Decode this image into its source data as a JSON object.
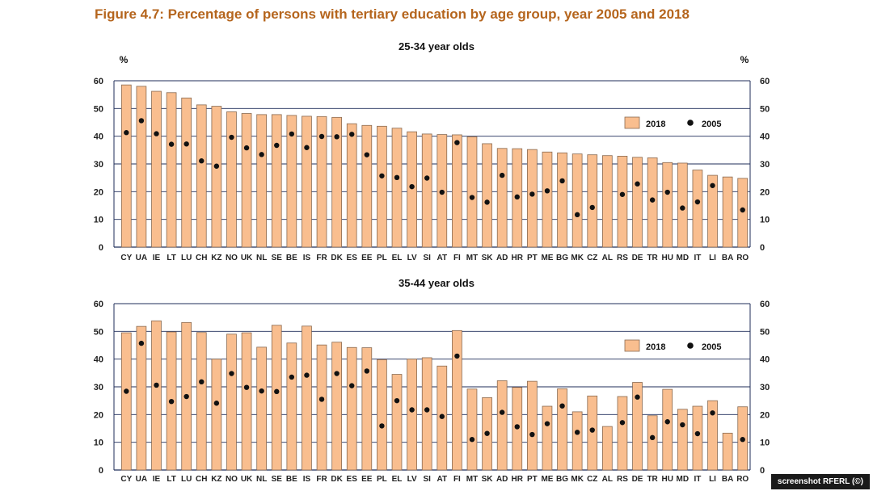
{
  "figure_title": "Figure 4.7: Percentage of persons with tertiary education by age group, year 2005 and 2018",
  "credit": "screenshot RFERL (©)",
  "colors": {
    "bar_fill": "#f9be8f",
    "bar_stroke": "#8a6a50",
    "dot": "#111111",
    "axis": "#1f2d5a",
    "title": "#b5651d"
  },
  "chart_data": [
    {
      "type": "bar",
      "title": "25-34 year olds",
      "ylabel_left": "%",
      "ylabel_right": "%",
      "ylim": [
        0,
        60
      ],
      "yticks": [
        "0",
        "10",
        "20",
        "30",
        "40",
        "50",
        "60"
      ],
      "legend": {
        "position": "top-right",
        "bar_label": "2018",
        "dot_label": "2005"
      },
      "categories": [
        "CY",
        "UA",
        "IE",
        "LT",
        "LU",
        "CH",
        "KZ",
        "NO",
        "UK",
        "NL",
        "SE",
        "BE",
        "IS",
        "FR",
        "DK",
        "ES",
        "EE",
        "PL",
        "EL",
        "LV",
        "SI",
        "AT",
        "FI",
        "MT",
        "SK",
        "AD",
        "HR",
        "PT",
        "ME",
        "BG",
        "MK",
        "CZ",
        "AL",
        "RS",
        "DE",
        "TR",
        "HU",
        "MD",
        "IT",
        "LI",
        "BA",
        "RO"
      ],
      "series": [
        {
          "name": "2018",
          "type": "bar",
          "values": [
            58.5,
            58,
            56.2,
            55.7,
            53.8,
            51.3,
            50.8,
            48.8,
            48.2,
            47.8,
            47.8,
            47.5,
            47.2,
            47.1,
            46.8,
            44.5,
            43.9,
            43.6,
            42.9,
            41.6,
            40.8,
            40.6,
            40.5,
            39.8,
            37.3,
            35.6,
            35.5,
            35.2,
            34.3,
            34,
            33.6,
            33.3,
            33,
            32.8,
            32.4,
            32.2,
            30.5,
            30.3,
            27.8,
            25.9,
            25.3,
            24.8
          ]
        },
        {
          "name": "2005",
          "type": "dot",
          "values": [
            41.3,
            45.6,
            40.9,
            37.1,
            37.2,
            31.1,
            29.2,
            39.6,
            35.8,
            33.4,
            36.7,
            40.8,
            35.9,
            39.9,
            39.8,
            40.7,
            33.3,
            25.7,
            25.1,
            21.8,
            24.9,
            19.8,
            37.7,
            17.9,
            16.2,
            25.9,
            18.1,
            19.1,
            20.3,
            23.9,
            11.7,
            14.3,
            null,
            19,
            22.8,
            17,
            19.8,
            14.1,
            16.3,
            22.2,
            null,
            13.4
          ]
        }
      ]
    },
    {
      "type": "bar",
      "title": "35-44 year olds",
      "ylim": [
        0,
        60
      ],
      "yticks": [
        "0",
        "10",
        "20",
        "30",
        "40",
        "50",
        "60"
      ],
      "legend": {
        "position": "top-right",
        "bar_label": "2018",
        "dot_label": "2005"
      },
      "categories": [
        "CY",
        "UA",
        "IE",
        "LT",
        "LU",
        "CH",
        "KZ",
        "NO",
        "UK",
        "NL",
        "SE",
        "BE",
        "IS",
        "FR",
        "DK",
        "ES",
        "EE",
        "PL",
        "EL",
        "LV",
        "SI",
        "AT",
        "FI",
        "MT",
        "SK",
        "AD",
        "HR",
        "PT",
        "ME",
        "BG",
        "MK",
        "CZ",
        "AL",
        "RS",
        "DE",
        "TR",
        "HU",
        "MD",
        "IT",
        "LI",
        "BA",
        "RO"
      ],
      "series": [
        {
          "name": "2018",
          "type": "bar",
          "values": [
            49.5,
            51.8,
            53.8,
            49.8,
            53.2,
            49.6,
            40,
            49,
            49.5,
            44.3,
            52.2,
            45.8,
            51.9,
            45.1,
            46.1,
            44.2,
            44.1,
            39.8,
            34.5,
            40,
            40.5,
            37.5,
            50.3,
            29.2,
            26.1,
            32.2,
            29.8,
            32,
            23,
            29.3,
            21,
            26.7,
            15.7,
            26.5,
            31.6,
            19.6,
            29.1,
            21.9,
            23,
            25,
            13.3,
            22.8
          ]
        },
        {
          "name": "2005",
          "type": "dot",
          "values": [
            28.4,
            45.7,
            30.6,
            24.7,
            26.5,
            31.8,
            24.1,
            34.8,
            29.8,
            28.5,
            28.3,
            33.5,
            34.2,
            25.5,
            34.8,
            30.4,
            35.7,
            15.9,
            25,
            21.7,
            21.7,
            19.3,
            41.1,
            11,
            13.2,
            20.8,
            15.6,
            12.8,
            16.7,
            23.1,
            13.6,
            14.4,
            null,
            17.1,
            26.3,
            11.7,
            17.4,
            16.3,
            13.1,
            20.6,
            null,
            11
          ]
        }
      ]
    }
  ]
}
